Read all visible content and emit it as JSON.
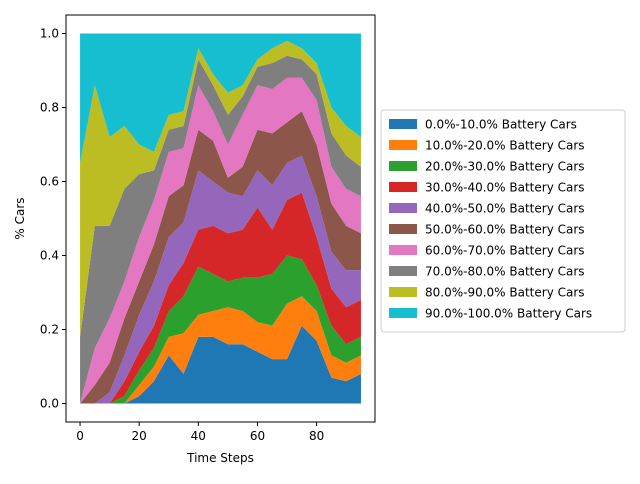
{
  "chart_data": {
    "type": "area",
    "stacked": true,
    "title": "",
    "xlabel": "Time Steps",
    "ylabel": "% Cars",
    "xlim": [
      -4.75,
      99.75
    ],
    "ylim": [
      -0.05,
      1.05
    ],
    "xticks": [
      0,
      20,
      40,
      60,
      80
    ],
    "yticks": [
      0.0,
      0.2,
      0.4,
      0.6,
      0.8,
      1.0
    ],
    "xtick_labels": [
      "0",
      "20",
      "40",
      "60",
      "80"
    ],
    "ytick_labels": [
      "0.0",
      "0.2",
      "0.4",
      "0.6",
      "0.8",
      "1.0"
    ],
    "legend_position": "right",
    "colors": [
      "#1f77b4",
      "#ff7f0e",
      "#2ca02c",
      "#d62728",
      "#9467bd",
      "#8c564b",
      "#e377c2",
      "#7f7f7f",
      "#bcbd22",
      "#17becf"
    ],
    "x": [
      0,
      5,
      10,
      15,
      20,
      25,
      30,
      35,
      40,
      45,
      50,
      55,
      60,
      65,
      70,
      75,
      80,
      85,
      90,
      95
    ],
    "series": [
      {
        "name": "0.0%-10.0% Battery Cars",
        "values": [
          0,
          0,
          0,
          0,
          0.02,
          0.06,
          0.13,
          0.08,
          0.18,
          0.18,
          0.16,
          0.16,
          0.14,
          0.12,
          0.12,
          0.21,
          0.17,
          0.07,
          0.06,
          0.08
        ]
      },
      {
        "name": "10.0%-20.0% Battery Cars",
        "values": [
          0,
          0,
          0,
          0,
          0.03,
          0.04,
          0.05,
          0.11,
          0.06,
          0.07,
          0.1,
          0.09,
          0.08,
          0.09,
          0.15,
          0.08,
          0.08,
          0.06,
          0.05,
          0.05
        ]
      },
      {
        "name": "20.0%-30.0% Battery Cars",
        "values": [
          0,
          0,
          0,
          0.02,
          0.04,
          0.05,
          0.07,
          0.1,
          0.13,
          0.1,
          0.07,
          0.09,
          0.12,
          0.14,
          0.13,
          0.1,
          0.07,
          0.08,
          0.05,
          0.05
        ]
      },
      {
        "name": "30.0%-40.0% Battery Cars",
        "values": [
          0,
          0,
          0,
          0.04,
          0.05,
          0.06,
          0.07,
          0.09,
          0.1,
          0.13,
          0.13,
          0.13,
          0.19,
          0.12,
          0.15,
          0.18,
          0.13,
          0.1,
          0.1,
          0.1
        ]
      },
      {
        "name": "40.0%-50.0% Battery Cars",
        "values": [
          0,
          0,
          0.03,
          0.07,
          0.1,
          0.12,
          0.13,
          0.11,
          0.16,
          0.12,
          0.11,
          0.09,
          0.1,
          0.12,
          0.1,
          0.1,
          0.11,
          0.1,
          0.1,
          0.08
        ]
      },
      {
        "name": "50.0%-60.0% Battery Cars",
        "values": [
          0,
          0.05,
          0.08,
          0.1,
          0.09,
          0.1,
          0.11,
          0.1,
          0.11,
          0.11,
          0.04,
          0.08,
          0.11,
          0.14,
          0.11,
          0.12,
          0.14,
          0.13,
          0.12,
          0.1
        ]
      },
      {
        "name": "60.0%-70.0% Battery Cars",
        "values": [
          0,
          0.1,
          0.12,
          0.1,
          0.12,
          0.12,
          0.12,
          0.1,
          0.12,
          0.08,
          0.09,
          0.14,
          0.12,
          0.12,
          0.12,
          0.09,
          0.12,
          0.1,
          0.1,
          0.1
        ]
      },
      {
        "name": "70.0%-80.0% Battery Cars",
        "values": [
          0.18,
          0.33,
          0.25,
          0.25,
          0.17,
          0.08,
          0.06,
          0.06,
          0.07,
          0.07,
          0.08,
          0.05,
          0.05,
          0.07,
          0.06,
          0.05,
          0.07,
          0.09,
          0.09,
          0.08
        ]
      },
      {
        "name": "80.0%-90.0% Battery Cars",
        "values": [
          0.47,
          0.38,
          0.24,
          0.17,
          0.08,
          0.05,
          0.04,
          0.04,
          0.03,
          0.03,
          0.06,
          0.03,
          0.02,
          0.04,
          0.04,
          0.03,
          0.03,
          0.07,
          0.08,
          0.08
        ]
      },
      {
        "name": "90.0%-100.0% Battery Cars",
        "values": [
          0.35,
          0.14,
          0.28,
          0.25,
          0.3,
          0.32,
          0.22,
          0.21,
          0.04,
          0.11,
          0.16,
          0.14,
          0.07,
          0.04,
          0.02,
          0.04,
          0.08,
          0.2,
          0.25,
          0.28
        ]
      }
    ]
  }
}
